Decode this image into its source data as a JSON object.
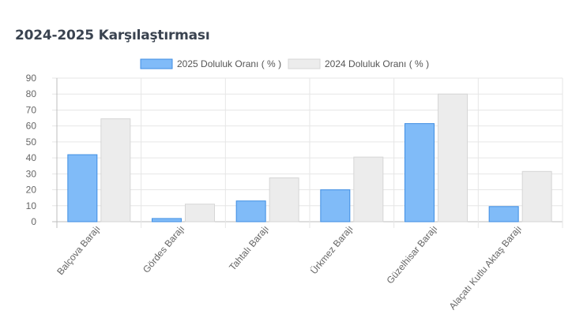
{
  "page": {
    "title": "2024-2025 Karşılaştırması"
  },
  "chart_data": {
    "type": "bar",
    "title": "2024-2025 Karşılaştırması",
    "categories": [
      "Balçova Barajı",
      "Gördes Barajı",
      "Tahtalı Barajı",
      "Ürkmez Barajı",
      "Güzelhisar Barajı",
      "Alaçatı Kutlu Aktaş Barajı"
    ],
    "series": [
      {
        "name": "2025 Doluluk Oranı ( % )",
        "values": [
          42,
          2,
          13,
          20,
          61.5,
          9.5
        ],
        "color": "#80bbf8",
        "border": "#3f8ee3"
      },
      {
        "name": "2024 Doluluk Oranı ( % )",
        "values": [
          64.5,
          11,
          27.5,
          40.5,
          80,
          31.5
        ],
        "color": "#ececec",
        "border": "#d6d6d6"
      }
    ],
    "ylim": [
      0,
      90
    ],
    "yticks": [
      0,
      10,
      20,
      30,
      40,
      50,
      60,
      70,
      80,
      90
    ],
    "grid": true,
    "legend_position": "top"
  }
}
